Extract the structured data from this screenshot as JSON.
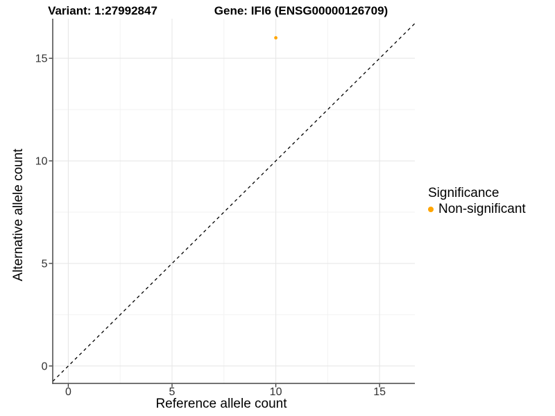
{
  "titles": {
    "variant": "Variant: 1:27992847",
    "gene": "Gene: IFI6 (ENSG00000126709)"
  },
  "chart_data": {
    "type": "scatter",
    "titles": [
      "Variant: 1:27992847",
      "Gene: IFI6 (ENSG00000126709)"
    ],
    "xlabel": "Reference allele count",
    "ylabel": "Alternative allele count",
    "xlim": [
      -0.75,
      16.7
    ],
    "ylim": [
      -0.85,
      16.93
    ],
    "x_ticks": [
      0,
      5,
      10,
      15
    ],
    "y_ticks": [
      0,
      5,
      10,
      15
    ],
    "x_minor_ticks": [
      2.5,
      7.5,
      12.5
    ],
    "y_minor_ticks": [
      2.5,
      7.5,
      12.5
    ],
    "grid": true,
    "series": [
      {
        "name": "Non-significant",
        "color": "#FFA500",
        "points": [
          {
            "x": 10,
            "y": 16
          }
        ]
      }
    ],
    "reference_line": {
      "slope": 1,
      "intercept": 0,
      "style": "dashed",
      "color": "#000000"
    },
    "legend": {
      "title": "Significance",
      "position": "right",
      "entries": [
        {
          "label": "Non-significant",
          "color": "#FFA500"
        }
      ]
    },
    "colors": {
      "background": "#FFFFFF",
      "point": "#FFA500",
      "axis_line": "#454545",
      "tick_mark": "#333333",
      "tick_label": "#303030",
      "grid_major": "#E7E7E7",
      "grid_minor": "#F2F2F2",
      "reference_line": "#000000"
    }
  }
}
